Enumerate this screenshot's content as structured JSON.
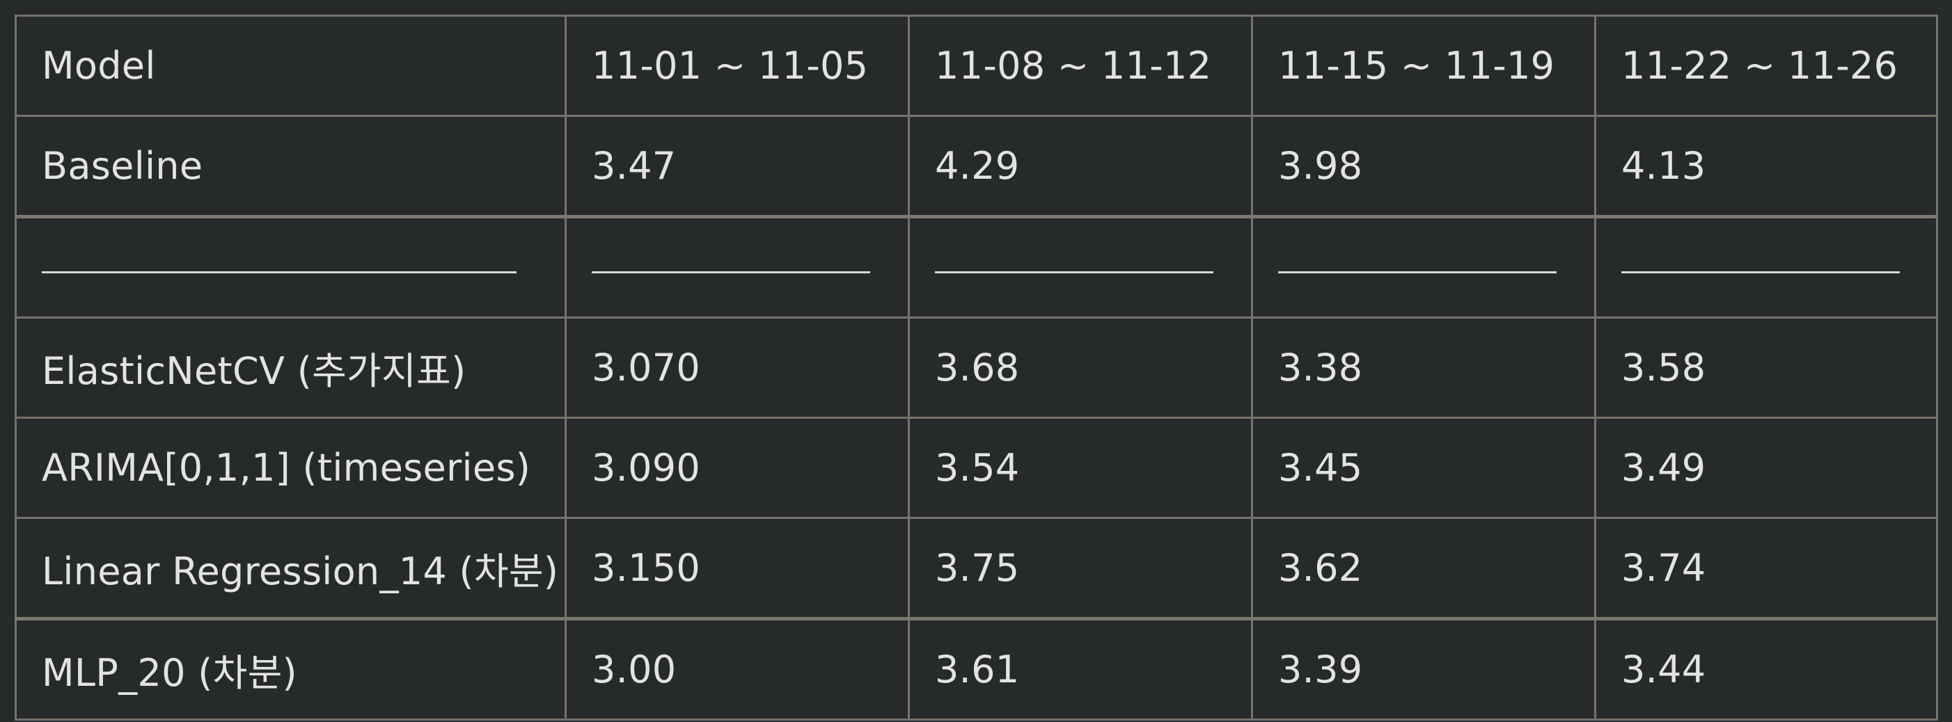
{
  "table": {
    "headers": [
      "Model",
      "11-01 ~ 11-05",
      "11-08 ~ 11-12",
      "11-15 ~ 11-19",
      "11-22 ~ 11-26"
    ],
    "rows": [
      [
        "Baseline",
        "3.47",
        "4.29",
        "3.98",
        "4.13"
      ],
      [
        "ElasticNetCV (추가지표)",
        "3.070",
        "3.68",
        "3.38",
        "3.58"
      ],
      [
        "ARIMA[0,1,1] (timeseries)",
        "3.090",
        "3.54",
        "3.45",
        "3.49"
      ],
      [
        "Linear Regression_14 (차분)",
        "3.150",
        "3.75",
        "3.62",
        "3.74"
      ],
      [
        "MLP_20 (차분)",
        "3.00",
        "3.61",
        "3.39",
        "3.44"
      ]
    ]
  },
  "colors": {
    "background": "#272a2b",
    "text": "#e3e3e3",
    "border": "#77726a"
  }
}
